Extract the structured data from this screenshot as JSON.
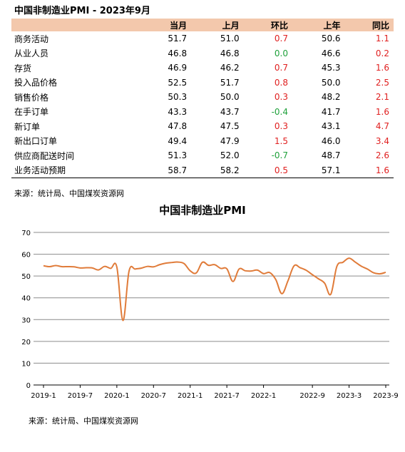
{
  "table": {
    "title": "中国非制造业PMI - 2023年9月",
    "headers": [
      "",
      "当月",
      "上月",
      "环比",
      "上年",
      "同比"
    ],
    "rows": [
      {
        "name": "商务活动",
        "cur": "51.7",
        "prev": "51.0",
        "mom": "0.7",
        "ly": "50.6",
        "yoy": "1.1"
      },
      {
        "name": "从业人员",
        "cur": "46.8",
        "prev": "46.8",
        "mom": "0.0",
        "ly": "46.6",
        "yoy": "0.2"
      },
      {
        "name": "存货",
        "cur": "46.9",
        "prev": "46.2",
        "mom": "0.7",
        "ly": "45.3",
        "yoy": "1.6"
      },
      {
        "name": "投入品价格",
        "cur": "52.5",
        "prev": "51.7",
        "mom": "0.8",
        "ly": "50.0",
        "yoy": "2.5"
      },
      {
        "name": "销售价格",
        "cur": "50.3",
        "prev": "50.0",
        "mom": "0.3",
        "ly": "48.2",
        "yoy": "2.1"
      },
      {
        "name": "在手订单",
        "cur": "43.3",
        "prev": "43.7",
        "mom": "-0.4",
        "ly": "41.7",
        "yoy": "1.6"
      },
      {
        "name": "新订单",
        "cur": "47.8",
        "prev": "47.5",
        "mom": "0.3",
        "ly": "43.1",
        "yoy": "4.7"
      },
      {
        "name": "新出口订单",
        "cur": "49.4",
        "prev": "47.9",
        "mom": "1.5",
        "ly": "46.0",
        "yoy": "3.4"
      },
      {
        "name": "供应商配送时间",
        "cur": "51.3",
        "prev": "52.0",
        "mom": "-0.7",
        "ly": "48.7",
        "yoy": "2.6"
      },
      {
        "name": "业务活动预期",
        "cur": "58.7",
        "prev": "58.2",
        "mom": "0.5",
        "ly": "57.1",
        "yoy": "1.6"
      }
    ],
    "source": "来源：统计局、中国煤炭资源网"
  },
  "chart_data": {
    "type": "line",
    "title": "中国非制造业PMI",
    "xlabel": "",
    "ylabel": "",
    "ylim": [
      0,
      70
    ],
    "yticks": [
      0,
      10,
      20,
      30,
      40,
      50,
      60,
      70
    ],
    "grid": true,
    "legend": "none",
    "line_color": "#e07b39",
    "x_tick_labels": [
      "2019-1",
      "2019-7",
      "2020-1",
      "2020-7",
      "2021-1",
      "2021-7",
      "2022-1",
      "2022-9",
      "2023-3",
      "2023-9"
    ],
    "x_tick_index": [
      0,
      6,
      12,
      18,
      24,
      30,
      36,
      44,
      50,
      56
    ],
    "x": [
      "2019-1",
      "2019-2",
      "2019-3",
      "2019-4",
      "2019-5",
      "2019-6",
      "2019-7",
      "2019-8",
      "2019-9",
      "2019-10",
      "2019-11",
      "2019-12",
      "2020-1",
      "2020-2",
      "2020-3",
      "2020-4",
      "2020-5",
      "2020-6",
      "2020-7",
      "2020-8",
      "2020-9",
      "2020-10",
      "2020-11",
      "2020-12",
      "2021-1",
      "2021-2",
      "2021-3",
      "2021-4",
      "2021-5",
      "2021-6",
      "2021-7",
      "2021-8",
      "2021-9",
      "2021-10",
      "2021-11",
      "2021-12",
      "2022-1",
      "2022-2",
      "2022-3",
      "2022-4",
      "2022-5",
      "2022-6",
      "2022-7",
      "2022-8",
      "2022-9",
      "2022-10",
      "2022-11",
      "2022-12",
      "2023-1",
      "2023-2",
      "2023-3",
      "2023-4",
      "2023-5",
      "2023-6",
      "2023-7",
      "2023-8",
      "2023-9"
    ],
    "series": [
      {
        "values": [
          54.7,
          54.3,
          54.8,
          54.3,
          54.3,
          54.2,
          53.7,
          53.8,
          53.7,
          52.8,
          54.4,
          53.5,
          54.1,
          29.6,
          52.3,
          53.2,
          53.6,
          54.4,
          54.2,
          55.2,
          55.9,
          56.2,
          56.4,
          55.7,
          52.4,
          51.4,
          56.3,
          54.9,
          55.2,
          53.5,
          53.3,
          47.5,
          53.2,
          52.4,
          52.3,
          52.7,
          51.1,
          51.6,
          48.4,
          41.9,
          47.8,
          54.7,
          53.8,
          52.6,
          50.6,
          48.7,
          46.7,
          41.6,
          54.4,
          56.3,
          58.2,
          56.4,
          54.5,
          53.2,
          51.5,
          51.0,
          51.7
        ]
      }
    ],
    "source": "来源：统计局、中国煤炭资源网"
  }
}
